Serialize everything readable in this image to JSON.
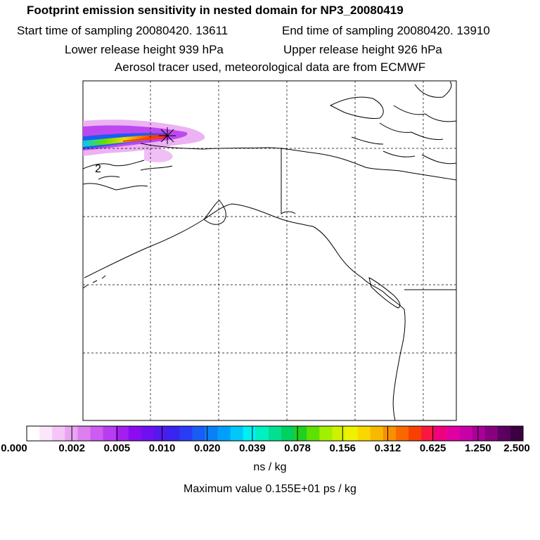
{
  "header": {
    "title": "Footprint emission sensitivity in nested domain for NP3_20080419",
    "start_time": "Start time of sampling 20080420. 13611",
    "end_time": "End time of sampling 20080420. 13910",
    "lower_release": "Lower release height  939 hPa",
    "upper_release": "Upper release height  926 hPa",
    "tracer_info": "Aerosol tracer used, meteorological data are from ECMWF"
  },
  "map": {
    "region": "Alaska and western Canada / US Pacific Northwest",
    "release_marker_label": "2",
    "release_marker_icon": "asterisk-star"
  },
  "colorbar": {
    "tick_labels": [
      "0.000",
      "0.002",
      "0.005",
      "0.010",
      "0.020",
      "0.039",
      "0.078",
      "0.156",
      "0.312",
      "0.625",
      "1.250",
      "2.500"
    ],
    "colors": [
      "#ffffff",
      "#fbe6fb",
      "#f3c6f6",
      "#e9a4f1",
      "#dd7ff0",
      "#cd5cef",
      "#b93cf0",
      "#a11ff0",
      "#8a0cf0",
      "#7010f0",
      "#5418f0",
      "#3a24f0",
      "#2a3cf4",
      "#1a5cf6",
      "#0a80f8",
      "#00a0fa",
      "#00c8fa",
      "#00f0f0",
      "#00f0c0",
      "#00e090",
      "#00d060",
      "#20d020",
      "#60e000",
      "#a0f000",
      "#d0f000",
      "#f0f000",
      "#f8d800",
      "#f8b800",
      "#f89000",
      "#f86800",
      "#f84000",
      "#f81840",
      "#f00080",
      "#e000a0",
      "#c800a8",
      "#a80098",
      "#880080",
      "#5a0060",
      "#3a0040"
    ],
    "units": "ns / kg",
    "max_value": "Maximum value  0.155E+01 ps / kg"
  }
}
